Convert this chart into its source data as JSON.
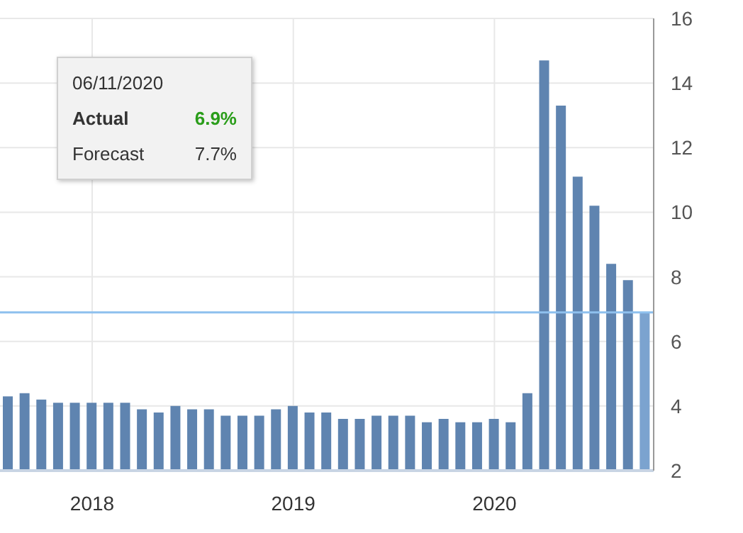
{
  "chart_data": {
    "type": "bar",
    "categories": [
      null,
      null,
      null,
      null,
      null,
      "2018",
      null,
      null,
      null,
      null,
      null,
      null,
      null,
      null,
      null,
      null,
      null,
      "2019",
      null,
      null,
      null,
      null,
      null,
      null,
      null,
      null,
      null,
      null,
      null,
      "2020",
      null,
      null,
      null,
      null,
      null,
      null,
      null,
      null,
      null
    ],
    "values": [
      4.3,
      4.4,
      4.2,
      4.1,
      4.1,
      4.1,
      4.1,
      4.1,
      3.9,
      3.8,
      4.0,
      3.9,
      3.9,
      3.7,
      3.7,
      3.7,
      3.9,
      4.0,
      3.8,
      3.8,
      3.6,
      3.6,
      3.7,
      3.7,
      3.7,
      3.5,
      3.6,
      3.5,
      3.5,
      3.6,
      3.5,
      4.4,
      14.7,
      13.3,
      11.1,
      10.2,
      8.4,
      7.9,
      6.9
    ],
    "colors": [
      "#5f84b0",
      "#5f84b0",
      "#5f84b0",
      "#5f84b0",
      "#5f84b0",
      "#5f84b0",
      "#5f84b0",
      "#5f84b0",
      "#5f84b0",
      "#5f84b0",
      "#5f84b0",
      "#5f84b0",
      "#5f84b0",
      "#5f84b0",
      "#5f84b0",
      "#5f84b0",
      "#5f84b0",
      "#5f84b0",
      "#5f84b0",
      "#5f84b0",
      "#5f84b0",
      "#5f84b0",
      "#5f84b0",
      "#5f84b0",
      "#5f84b0",
      "#5f84b0",
      "#5f84b0",
      "#5f84b0",
      "#5f84b0",
      "#5f84b0",
      "#5f84b0",
      "#5f84b0",
      "#5f84b0",
      "#5f84b0",
      "#5f84b0",
      "#5f84b0",
      "#5f84b0",
      "#5f84b0",
      "#7ba3cf"
    ],
    "ylim": [
      2,
      16
    ],
    "yticks": [
      2,
      4,
      6,
      8,
      10,
      12,
      14,
      16
    ],
    "grid": true,
    "ref_lines": [
      {
        "axis": "y",
        "value": 6.9,
        "color": "#8ec0ee"
      }
    ],
    "annotations": [
      "06/11/2020",
      "Actual",
      "6.9%",
      "Forecast",
      "7.7%"
    ]
  }
}
